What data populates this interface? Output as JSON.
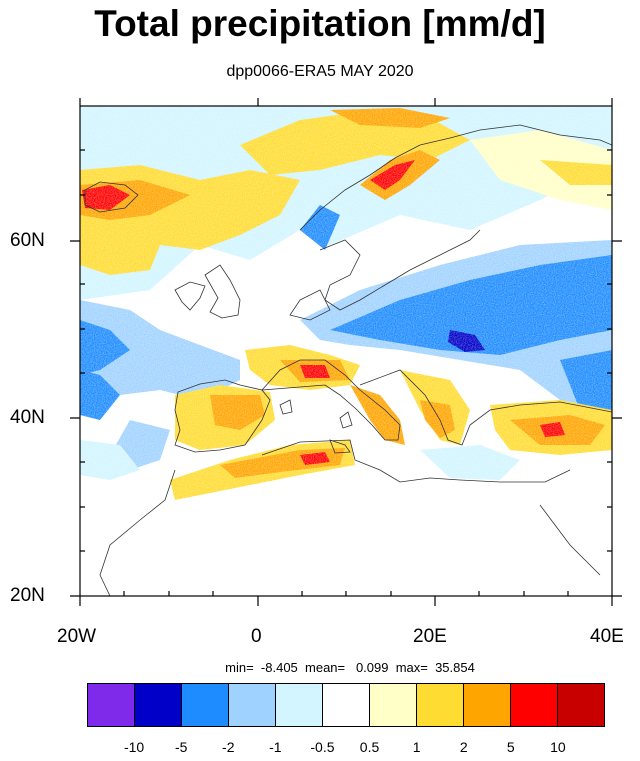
{
  "title": "Total precipitation [mm/d]",
  "subtitle": "dpp0066-ERA5 MAY 2020",
  "map": {
    "y_axis_labels": [
      "60N",
      "40N",
      "20N"
    ],
    "x_axis_labels": [
      "20W",
      "0",
      "20E",
      "40E"
    ],
    "lon_range": [
      -20,
      40
    ],
    "lat_range": [
      20,
      75
    ]
  },
  "stats": {
    "text": "min=  -8.405  mean=   0.099  max=  35.854"
  },
  "colorbar": {
    "colors": [
      "#7f2aea",
      "#0000c8",
      "#1e8cff",
      "#a0d2ff",
      "#d2f5ff",
      "#ffffff",
      "#ffffc8",
      "#ffdc32",
      "#ffa500",
      "#ff0000",
      "#c80000"
    ],
    "labels": [
      "-10",
      "-5",
      "-2",
      "-1",
      "-0.5",
      "0.5",
      "1",
      "2",
      "5",
      "10"
    ]
  }
}
